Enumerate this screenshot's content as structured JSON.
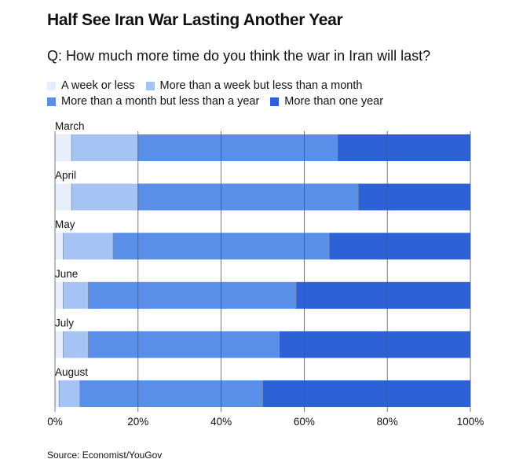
{
  "title": "Half See Iran War Lasting Another Year",
  "subtitle": "Q: How much more time do you think the war in Iran will last?",
  "source": "Source: Economist/YouGov",
  "chart_data": {
    "type": "bar",
    "orientation": "horizontal",
    "stacked": true,
    "categories": [
      "March",
      "April",
      "May",
      "June",
      "July",
      "August"
    ],
    "series": [
      {
        "name": "A week or less",
        "color": "#e6effb",
        "values": [
          4,
          4,
          2,
          2,
          2,
          1
        ]
      },
      {
        "name": "More than a week but less than a month",
        "color": "#a6c4f3",
        "values": [
          16,
          16,
          12,
          6,
          6,
          5
        ]
      },
      {
        "name": "More than a month but less than a year",
        "color": "#5a8fe9",
        "values": [
          48,
          53,
          52,
          50,
          46,
          44
        ]
      },
      {
        "name": "More than one year",
        "color": "#2d62d6",
        "values": [
          32,
          27,
          34,
          42,
          46,
          50
        ]
      }
    ],
    "x_ticks": [
      "0%",
      "20%",
      "40%",
      "60%",
      "80%",
      "100%"
    ],
    "xlim": [
      0,
      100
    ],
    "legend_position": "top"
  }
}
